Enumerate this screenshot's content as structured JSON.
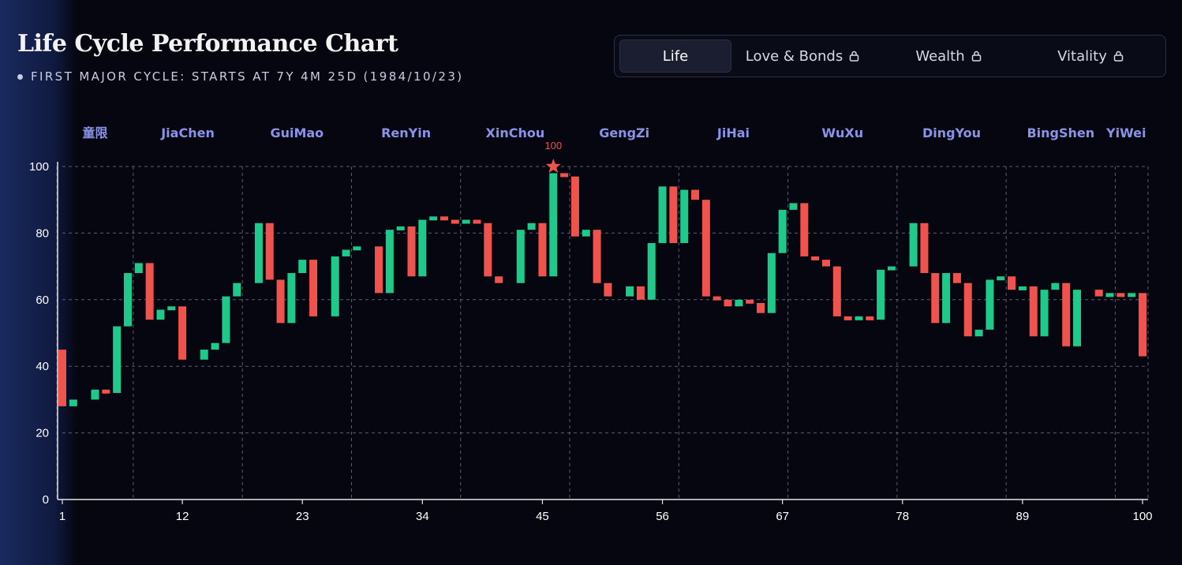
{
  "header": {
    "title": "Life Cycle Performance Chart",
    "subtitle": "FIRST MAJOR CYCLE: STARTS AT 7Y 4M 25D (1984/10/23)"
  },
  "tabs": [
    {
      "label": "Life",
      "active": true,
      "locked": false
    },
    {
      "label": "Love & Bonds",
      "active": false,
      "locked": true
    },
    {
      "label": "Wealth",
      "active": false,
      "locked": true
    },
    {
      "label": "Vitality",
      "active": false,
      "locked": true
    }
  ],
  "colors": {
    "up": "#1fc98a",
    "down": "#f0524d",
    "cycle_label": "#8b93e8",
    "grid": "#5a5f70"
  },
  "chart_data": {
    "type": "candlestick",
    "x_ticks": [
      1,
      12,
      23,
      34,
      45,
      56,
      67,
      78,
      89,
      100
    ],
    "y_ticks": [
      0,
      20,
      40,
      60,
      80,
      100
    ],
    "xlim": [
      1,
      100
    ],
    "ylim": [
      0,
      100
    ],
    "grid": true,
    "cycles": [
      {
        "label": "童限",
        "start": 1
      },
      {
        "label": "JiaChen",
        "start": 8
      },
      {
        "label": "GuiMao",
        "start": 18
      },
      {
        "label": "RenYin",
        "start": 28
      },
      {
        "label": "XinChou",
        "start": 38
      },
      {
        "label": "GengZi",
        "start": 48
      },
      {
        "label": "JiHai",
        "start": 58
      },
      {
        "label": "WuXu",
        "start": 68
      },
      {
        "label": "DingYou",
        "start": 78
      },
      {
        "label": "BingShen",
        "start": 88
      },
      {
        "label": "YiWei",
        "start": 98
      }
    ],
    "peak": {
      "age": 46,
      "value": 100,
      "label": "100"
    },
    "candles": [
      [
        1,
        45,
        28
      ],
      [
        2,
        28,
        30
      ],
      [
        4,
        30,
        33
      ],
      [
        5,
        33,
        32
      ],
      [
        6,
        32,
        52
      ],
      [
        7,
        52,
        68
      ],
      [
        8,
        68,
        71
      ],
      [
        9,
        71,
        54
      ],
      [
        10,
        54,
        57
      ],
      [
        11,
        57,
        58
      ],
      [
        12,
        58,
        42
      ],
      [
        14,
        42,
        45
      ],
      [
        15,
        45,
        47
      ],
      [
        16,
        47,
        61
      ],
      [
        17,
        61,
        65
      ],
      [
        19,
        65,
        83
      ],
      [
        20,
        83,
        66
      ],
      [
        21,
        66,
        53
      ],
      [
        22,
        53,
        68
      ],
      [
        23,
        68,
        72
      ],
      [
        24,
        72,
        55
      ],
      [
        26,
        55,
        73
      ],
      [
        27,
        73,
        75
      ],
      [
        28,
        75,
        76
      ],
      [
        30,
        76,
        62
      ],
      [
        31,
        62,
        81
      ],
      [
        32,
        81,
        82
      ],
      [
        33,
        82,
        67
      ],
      [
        34,
        67,
        84
      ],
      [
        35,
        84,
        85
      ],
      [
        36,
        85,
        84
      ],
      [
        37,
        84,
        83
      ],
      [
        38,
        83,
        84
      ],
      [
        39,
        84,
        83
      ],
      [
        40,
        83,
        67
      ],
      [
        41,
        67,
        65
      ],
      [
        43,
        65,
        81
      ],
      [
        44,
        81,
        83
      ],
      [
        45,
        83,
        67
      ],
      [
        46,
        67,
        98
      ],
      [
        47,
        98,
        97
      ],
      [
        48,
        97,
        79
      ],
      [
        49,
        79,
        81
      ],
      [
        50,
        81,
        65
      ],
      [
        51,
        65,
        61
      ],
      [
        53,
        61,
        64
      ],
      [
        54,
        64,
        60
      ],
      [
        55,
        60,
        77
      ],
      [
        56,
        77,
        94
      ],
      [
        57,
        94,
        77
      ],
      [
        58,
        77,
        93
      ],
      [
        59,
        93,
        90
      ],
      [
        60,
        90,
        61
      ],
      [
        61,
        61,
        60
      ],
      [
        62,
        60,
        58
      ],
      [
        63,
        58,
        60
      ],
      [
        64,
        60,
        59
      ],
      [
        65,
        59,
        56
      ],
      [
        66,
        56,
        74
      ],
      [
        67,
        74,
        87
      ],
      [
        68,
        87,
        89
      ],
      [
        69,
        89,
        73
      ],
      [
        70,
        73,
        72
      ],
      [
        71,
        72,
        70
      ],
      [
        72,
        70,
        55
      ],
      [
        73,
        55,
        54
      ],
      [
        74,
        54,
        55
      ],
      [
        75,
        55,
        54
      ],
      [
        76,
        54,
        69
      ],
      [
        77,
        69,
        70
      ],
      [
        79,
        70,
        83
      ],
      [
        80,
        83,
        68
      ],
      [
        81,
        68,
        53
      ],
      [
        82,
        53,
        68
      ],
      [
        83,
        68,
        65
      ],
      [
        84,
        65,
        49
      ],
      [
        85,
        49,
        51
      ],
      [
        86,
        51,
        66
      ],
      [
        87,
        66,
        67
      ],
      [
        88,
        67,
        63
      ],
      [
        89,
        63,
        64
      ],
      [
        90,
        64,
        49
      ],
      [
        91,
        49,
        63
      ],
      [
        92,
        63,
        65
      ],
      [
        93,
        65,
        46
      ],
      [
        94,
        46,
        63
      ],
      [
        96,
        63,
        61
      ],
      [
        97,
        61,
        62
      ],
      [
        98,
        62,
        61
      ],
      [
        99,
        61,
        62
      ],
      [
        100,
        62,
        43
      ]
    ]
  }
}
